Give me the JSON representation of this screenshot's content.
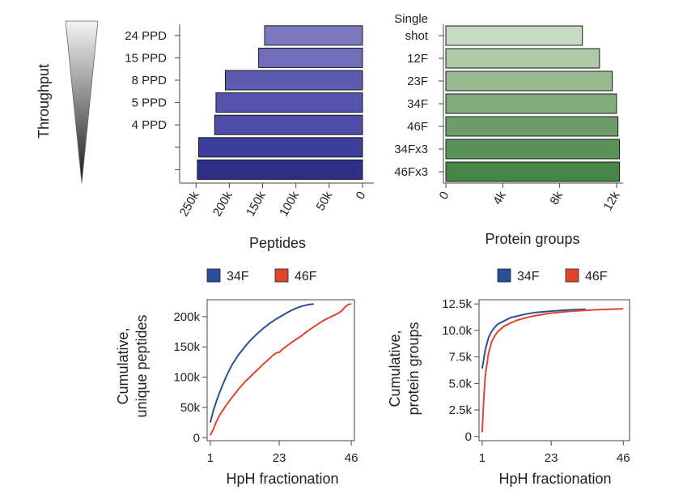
{
  "throughput_label": "Throughput",
  "colors": {
    "bar_blue": "#42429a",
    "bar_green": "#5a9a5a",
    "line_34F": "#2a4f98",
    "line_46F": "#e0452f"
  },
  "chart_data": [
    {
      "id": "peptides",
      "type": "bar",
      "orientation": "horizontal",
      "xaxis_reversed": true,
      "categories": [
        "24 PPD",
        "15 PPD",
        "8 PPD",
        "5 PPD",
        "4 PPD",
        "",
        ""
      ],
      "values": [
        147000,
        156000,
        206000,
        220000,
        222000,
        246000,
        248000
      ],
      "fill_colors": [
        "#7b78bf",
        "#716ebb",
        "#5d5bb1",
        "#5554ac",
        "#4e4ea8",
        "#3d3d9a",
        "#2e3088"
      ],
      "xlabel": "Peptides",
      "xlim": [
        0,
        260000
      ],
      "xticks": [
        0,
        50000,
        100000,
        150000,
        200000,
        250000
      ],
      "xtick_labels": [
        "0",
        "50k",
        "100k",
        "150k",
        "200k",
        "250k"
      ]
    },
    {
      "id": "protein_groups",
      "type": "bar",
      "orientation": "horizontal",
      "categories": [
        "Single shot",
        "12F",
        "23F",
        "34F",
        "46F",
        "34Fx3",
        "46Fx3"
      ],
      "category_lines": [
        [
          "Single",
          "shot"
        ],
        [
          "12F"
        ],
        [
          "23F"
        ],
        [
          "34F"
        ],
        [
          "46F"
        ],
        [
          "34Fx3"
        ],
        [
          "46Fx3"
        ]
      ],
      "values": [
        9600,
        10800,
        11700,
        12000,
        12100,
        12200,
        12200
      ],
      "fill_colors": [
        "#c6dcc2",
        "#aecaa8",
        "#98bb92",
        "#82ac7c",
        "#6c9d68",
        "#5a9258",
        "#478745"
      ],
      "xlabel": "Protein groups",
      "xlim": [
        0,
        12400
      ],
      "xticks": [
        0,
        4000,
        8000,
        12000
      ],
      "xtick_labels": [
        "0",
        "4k",
        "8k",
        "12k"
      ]
    },
    {
      "id": "cum_peptides",
      "type": "line",
      "legend": [
        "34F",
        "46F"
      ],
      "xlabel": "HpH fractionation",
      "ylabel": [
        "Cumulative,",
        "unique peptides"
      ],
      "xlim": [
        0,
        47
      ],
      "ylim": [
        -5000,
        228000
      ],
      "xticks": [
        1,
        23,
        46
      ],
      "xtick_labels": [
        "1",
        "23",
        "46"
      ],
      "yticks": [
        0,
        50000,
        100000,
        150000,
        200000
      ],
      "ytick_labels": [
        "0",
        "50k",
        "100k",
        "150k",
        "200k"
      ],
      "series": [
        {
          "name": "34F",
          "x": [
            1,
            2,
            3,
            4,
            5,
            6,
            7,
            8,
            9,
            10,
            12,
            14,
            16,
            18,
            20,
            22,
            24,
            26,
            28,
            30,
            32,
            34
          ],
          "y": [
            25000,
            45000,
            61000,
            75000,
            88000,
            100000,
            111000,
            121000,
            129000,
            137000,
            150000,
            162000,
            172000,
            181000,
            189000,
            196000,
            202000,
            208000,
            213000,
            217000,
            219500,
            221000
          ]
        },
        {
          "name": "46F",
          "x": [
            1,
            2,
            3,
            4,
            6,
            8,
            10,
            12,
            14,
            16,
            18,
            20,
            21,
            22,
            23,
            24,
            26,
            28,
            30,
            32,
            34,
            36,
            38,
            40,
            42,
            43,
            44,
            45,
            46
          ],
          "y": [
            4000,
            14000,
            27000,
            37000,
            53000,
            67000,
            80000,
            92000,
            102000,
            112000,
            122000,
            131000,
            136000,
            140000,
            141000,
            146000,
            154000,
            161000,
            168000,
            176000,
            183000,
            190000,
            196000,
            201000,
            206000,
            210000,
            216000,
            220000,
            221000
          ]
        }
      ]
    },
    {
      "id": "cum_protein_groups",
      "type": "line",
      "legend": [
        "34F",
        "46F"
      ],
      "xlabel": "HpH fractionation",
      "ylabel": [
        "Cumulative,",
        "protein groups"
      ],
      "xlim": [
        0,
        48
      ],
      "ylim": [
        -400,
        12900
      ],
      "xticks": [
        1,
        23,
        46
      ],
      "xtick_labels": [
        "1",
        "23",
        "46"
      ],
      "yticks": [
        0,
        2500,
        5000,
        7500,
        10000,
        12500
      ],
      "ytick_labels": [
        "0",
        "2.5k",
        "5.0k",
        "7.5k",
        "10.0k",
        "12.5k"
      ],
      "series": [
        {
          "name": "34F",
          "x": [
            1,
            2,
            3,
            4,
            5,
            6,
            8,
            10,
            12,
            15,
            18,
            22,
            26,
            30,
            34
          ],
          "y": [
            6400,
            8200,
            9300,
            9900,
            10300,
            10600,
            10900,
            11200,
            11350,
            11550,
            11700,
            11800,
            11880,
            11950,
            12000
          ]
        },
        {
          "name": "46F",
          "x": [
            1,
            1.5,
            2,
            3,
            4,
            5,
            6,
            8,
            10,
            12,
            15,
            18,
            22,
            26,
            30,
            34,
            38,
            42,
            46
          ],
          "y": [
            400,
            3500,
            5800,
            7800,
            8900,
            9500,
            9900,
            10400,
            10700,
            10950,
            11200,
            11400,
            11600,
            11720,
            11830,
            11900,
            11960,
            12000,
            12050
          ]
        }
      ]
    }
  ]
}
